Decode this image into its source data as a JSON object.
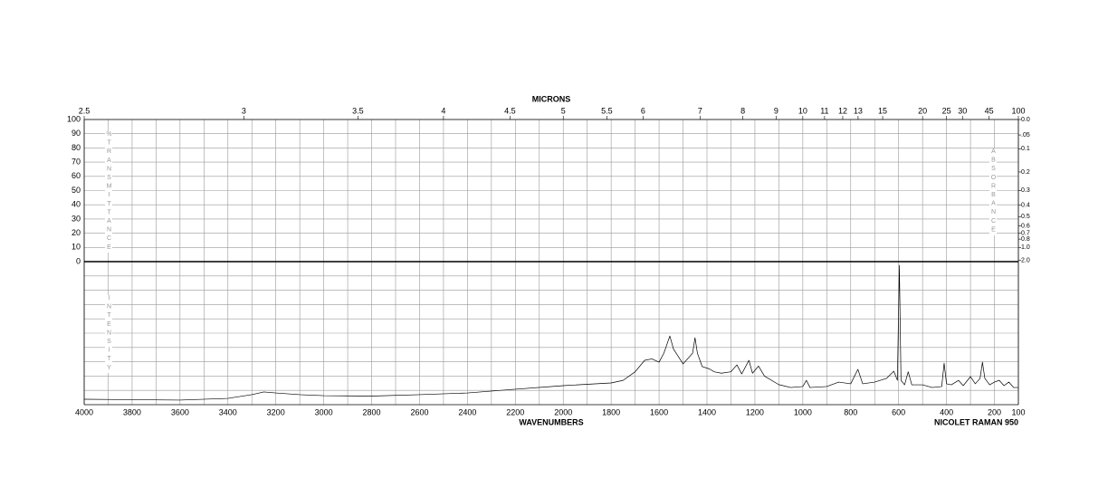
{
  "chart_data": {
    "type": "line",
    "title": "MICRONS",
    "x_label": "WAVENUMBERS",
    "instrument": "NICOLET RAMAN 950",
    "y_label": "%TRANSMITTANCE",
    "y2_label": "ABSORBANCE",
    "intensity_label": "INTENSITY",
    "xlim": [
      4000,
      100
    ],
    "xticks": [
      4000,
      3800,
      3600,
      3400,
      3200,
      3000,
      2800,
      2600,
      2400,
      2200,
      2000,
      1800,
      1600,
      1400,
      1200,
      1000,
      800,
      600,
      400,
      200,
      100
    ],
    "micron_ticks": [
      2.5,
      3,
      3.5,
      4,
      4.5,
      5,
      5.5,
      6,
      7,
      8,
      9,
      10,
      11,
      12,
      13,
      15,
      20,
      25,
      30,
      45,
      100
    ],
    "ylim": [
      0,
      100
    ],
    "yticks": [
      100,
      90,
      80,
      70,
      60,
      50,
      40,
      30,
      20,
      10,
      0
    ],
    "y2ticks": [
      {
        "value": 0,
        "label": "0.0"
      },
      {
        "value": 0.05,
        "label": ".05"
      },
      0.1,
      0.2,
      0.3,
      0.4,
      0.5,
      0.6,
      0.7,
      0.8,
      {
        "value": 1,
        "label": "1.0"
      },
      {
        "value": 2,
        "label": "2.0"
      }
    ],
    "intensity_lim": [
      0,
      100
    ],
    "grid": true,
    "series": [
      {
        "name": "Raman intensity",
        "color": "#000000",
        "x": [
          4000,
          3600,
          3400,
          3300,
          3250,
          3200,
          3100,
          3000,
          2800,
          2600,
          2400,
          2200,
          2000,
          1800,
          1750,
          1700,
          1660,
          1630,
          1600,
          1580,
          1555,
          1540,
          1500,
          1460,
          1450,
          1440,
          1420,
          1390,
          1370,
          1340,
          1300,
          1275,
          1255,
          1225,
          1210,
          1185,
          1160,
          1100,
          1050,
          1000,
          985,
          970,
          900,
          850,
          800,
          770,
          750,
          700,
          650,
          620,
          605,
          597,
          590,
          575,
          560,
          545,
          500,
          460,
          420,
          410,
          400,
          380,
          350,
          330,
          300,
          280,
          260,
          250,
          240,
          220,
          200,
          180,
          160,
          140,
          120,
          100
        ],
        "values": [
          3.8,
          3.2,
          4.4,
          7,
          8.9,
          8.2,
          7,
          6.3,
          6,
          7,
          8.2,
          10.8,
          13.3,
          15.2,
          17,
          23,
          31,
          32,
          29.7,
          36,
          48,
          39,
          28.5,
          36,
          46.8,
          36,
          26.6,
          25,
          23,
          22,
          23,
          27.8,
          21.5,
          31,
          22,
          27,
          20,
          14,
          12,
          12.7,
          17,
          12,
          12.7,
          15.8,
          14.6,
          24.7,
          14.6,
          15.8,
          18.4,
          23.4,
          17,
          97.5,
          17,
          13.9,
          23,
          13.9,
          13.9,
          12,
          12.7,
          29,
          14.6,
          13.9,
          17,
          13.3,
          19.6,
          14.6,
          18.4,
          29.7,
          18.4,
          13.9,
          15.8,
          17,
          13.3,
          15.8,
          12,
          12
        ]
      }
    ]
  }
}
